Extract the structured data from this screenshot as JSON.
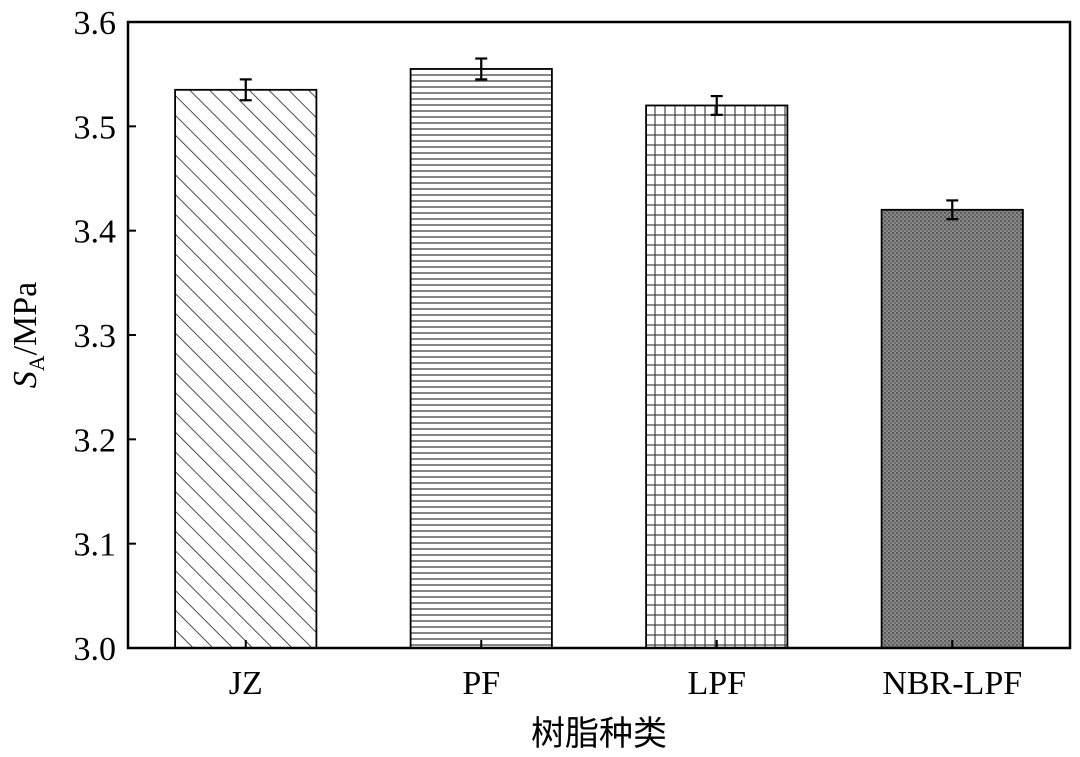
{
  "chart_data": {
    "type": "bar",
    "categories": [
      "JZ",
      "PF",
      "LPF",
      "NBR-LPF"
    ],
    "values": [
      3.535,
      3.555,
      3.52,
      3.42
    ],
    "errors": [
      0.01,
      0.01,
      0.009,
      0.009
    ],
    "patterns": [
      "diagonal-hatch",
      "horizontal-lines",
      "grid",
      "dense-dots"
    ],
    "ylim": [
      3.0,
      3.6
    ],
    "yticks": [
      "3.0",
      "3.1",
      "3.2",
      "3.3",
      "3.4",
      "3.5",
      "3.6"
    ],
    "ylabel_main": "S",
    "ylabel_sub": "A",
    "ylabel_unit": "/MPa",
    "xlabel": "树脂种类",
    "grid": false
  }
}
